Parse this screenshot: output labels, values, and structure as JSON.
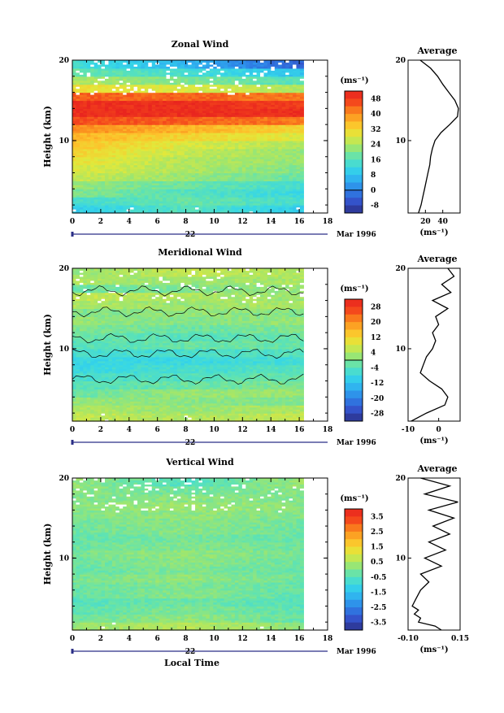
{
  "chart_data": [
    {
      "type": "heatmap",
      "title": "Zonal Wind",
      "ylabel": "Height (km)",
      "xlabel": "",
      "x_ticks": [
        "0",
        "2",
        "4",
        "6",
        "8",
        "10",
        "12",
        "14",
        "16",
        "18"
      ],
      "y_ticks": [
        "10",
        "20"
      ],
      "xlim": [
        0,
        18
      ],
      "ylim": [
        1,
        20
      ],
      "date_label": "22",
      "month_label": "Mar 1996",
      "colorbar": {
        "unit": "(ms⁻¹)",
        "ticks": [
          "48",
          "40",
          "32",
          "24",
          "16",
          "8",
          "0",
          "-8"
        ],
        "range": [
          -12,
          52
        ],
        "contour_at": 0
      },
      "bands": [
        {
          "h": [
            1,
            2
          ],
          "v": [
            10,
            16,
            10
          ]
        },
        {
          "h": [
            2,
            3
          ],
          "v": [
            14,
            18,
            14
          ]
        },
        {
          "h": [
            3,
            4
          ],
          "v": [
            20,
            16,
            12
          ]
        },
        {
          "h": [
            4,
            5
          ],
          "v": [
            22,
            18,
            14
          ]
        },
        {
          "h": [
            5,
            6
          ],
          "v": [
            26,
            22,
            18
          ]
        },
        {
          "h": [
            6,
            7
          ],
          "v": [
            28,
            24,
            20
          ]
        },
        {
          "h": [
            7,
            8
          ],
          "v": [
            30,
            24,
            22
          ]
        },
        {
          "h": [
            8,
            9
          ],
          "v": [
            32,
            26,
            22
          ]
        },
        {
          "h": [
            9,
            10
          ],
          "v": [
            34,
            28,
            24
          ]
        },
        {
          "h": [
            10,
            11
          ],
          "v": [
            36,
            32,
            28
          ]
        },
        {
          "h": [
            11,
            12
          ],
          "v": [
            40,
            36,
            32
          ]
        },
        {
          "h": [
            12,
            13
          ],
          "v": [
            46,
            44,
            42
          ]
        },
        {
          "h": [
            13,
            14
          ],
          "v": [
            50,
            50,
            50
          ]
        },
        {
          "h": [
            14,
            15
          ],
          "v": [
            50,
            50,
            48
          ]
        },
        {
          "h": [
            15,
            16
          ],
          "v": [
            44,
            44,
            42
          ]
        },
        {
          "h": [
            16,
            17
          ],
          "v": [
            30,
            28,
            24
          ]
        },
        {
          "h": [
            17,
            18
          ],
          "v": [
            24,
            20,
            16
          ]
        },
        {
          "h": [
            18,
            19
          ],
          "v": [
            18,
            14,
            8
          ]
        },
        {
          "h": [
            19,
            20
          ],
          "v": [
            14,
            6,
            -4
          ]
        }
      ],
      "data_end_hour": 16.3,
      "profile": {
        "title": "Average",
        "x_ticks": [
          "20",
          "40"
        ],
        "xlim": [
          0,
          60
        ],
        "y_ticks": [
          "10",
          "20"
        ],
        "xlabel": "(ms⁻¹)",
        "heights": [
          1,
          2,
          3,
          4,
          5,
          6,
          7,
          8,
          9,
          10,
          11,
          12,
          13,
          14,
          15,
          16,
          17,
          18,
          19,
          20
        ],
        "values": [
          12,
          15,
          17,
          19,
          21,
          23,
          25,
          26,
          28,
          31,
          38,
          48,
          57,
          58,
          54,
          47,
          40,
          34,
          26,
          14
        ]
      }
    },
    {
      "type": "heatmap",
      "title": "Meridional Wind",
      "ylabel": "Height (km)",
      "xlabel": "",
      "x_ticks": [
        "0",
        "2",
        "4",
        "6",
        "8",
        "10",
        "12",
        "14",
        "16",
        "18"
      ],
      "y_ticks": [
        "10",
        "20"
      ],
      "xlim": [
        0,
        18
      ],
      "ylim": [
        1,
        20
      ],
      "date_label": "22",
      "month_label": "Mar 1996",
      "colorbar": {
        "unit": "(ms⁻¹)",
        "ticks": [
          "28",
          "20",
          "12",
          "4",
          "-4",
          "-12",
          "-20",
          "-28"
        ],
        "range": [
          -32,
          32
        ],
        "contour_at": 0
      },
      "bands": [
        {
          "h": [
            1,
            2
          ],
          "v": [
            6,
            4,
            6
          ]
        },
        {
          "h": [
            2,
            3
          ],
          "v": [
            4,
            2,
            4
          ]
        },
        {
          "h": [
            3,
            4
          ],
          "v": [
            2,
            1,
            0
          ]
        },
        {
          "h": [
            4,
            5
          ],
          "v": [
            -2,
            2,
            2
          ]
        },
        {
          "h": [
            5,
            6
          ],
          "v": [
            -4,
            -2,
            0
          ]
        },
        {
          "h": [
            6,
            7
          ],
          "v": [
            -6,
            -4,
            -2
          ]
        },
        {
          "h": [
            7,
            8
          ],
          "v": [
            -8,
            -6,
            -4
          ]
        },
        {
          "h": [
            8,
            9
          ],
          "v": [
            -8,
            -8,
            -6
          ]
        },
        {
          "h": [
            9,
            10
          ],
          "v": [
            -6,
            -6,
            -4
          ]
        },
        {
          "h": [
            10,
            11
          ],
          "v": [
            -4,
            -2,
            -2
          ]
        },
        {
          "h": [
            11,
            12
          ],
          "v": [
            -2,
            -4,
            -2
          ]
        },
        {
          "h": [
            12,
            13
          ],
          "v": [
            0,
            -2,
            0
          ]
        },
        {
          "h": [
            13,
            14
          ],
          "v": [
            2,
            0,
            2
          ]
        },
        {
          "h": [
            14,
            15
          ],
          "v": [
            0,
            2,
            0
          ]
        },
        {
          "h": [
            15,
            16
          ],
          "v": [
            4,
            2,
            4
          ]
        },
        {
          "h": [
            16,
            17
          ],
          "v": [
            6,
            4,
            2
          ]
        },
        {
          "h": [
            17,
            18
          ],
          "v": [
            -2,
            0,
            2
          ]
        },
        {
          "h": [
            18,
            19
          ],
          "v": [
            4,
            2,
            4
          ]
        },
        {
          "h": [
            19,
            20
          ],
          "v": [
            2,
            6,
            4
          ]
        }
      ],
      "data_end_hour": 16.3,
      "profile": {
        "title": "Average",
        "x_ticks": [
          "-10",
          "0"
        ],
        "xlim": [
          -10,
          7
        ],
        "y_ticks": [
          "10",
          "20"
        ],
        "xlabel": "(ms⁻¹)",
        "heights": [
          1,
          2,
          3,
          4,
          5,
          6,
          7,
          8,
          9,
          10,
          11,
          12,
          13,
          14,
          15,
          16,
          17,
          18,
          19,
          20
        ],
        "values": [
          -9,
          -4,
          2,
          3,
          1,
          -3,
          -6,
          -5,
          -4,
          -2,
          -1,
          -2,
          0,
          -1,
          3,
          -2,
          4,
          1,
          5,
          3
        ]
      }
    },
    {
      "type": "heatmap",
      "title": "Vertical Wind",
      "ylabel": "Height (km)",
      "xlabel": "Local Time",
      "x_ticks": [
        "0",
        "2",
        "4",
        "6",
        "8",
        "10",
        "12",
        "14",
        "16",
        "18"
      ],
      "y_ticks": [
        "10",
        "20"
      ],
      "xlim": [
        0,
        18
      ],
      "ylim": [
        1,
        20
      ],
      "date_label": "22",
      "month_label": "Mar 1996",
      "colorbar": {
        "unit": "(ms⁻¹)",
        "ticks": [
          "3.5",
          "2.5",
          "1.5",
          "0.5",
          "-0.5",
          "-1.5",
          "-2.5",
          "-3.5"
        ],
        "range": [
          -4,
          4
        ],
        "contour_at": null
      },
      "bands": [
        {
          "h": [
            1,
            2
          ],
          "v": [
            0.3,
            0.6,
            0.1
          ]
        },
        {
          "h": [
            2,
            3
          ],
          "v": [
            -0.2,
            0.2,
            -0.3
          ]
        },
        {
          "h": [
            3,
            4
          ],
          "v": [
            -0.4,
            0.0,
            -0.4
          ]
        },
        {
          "h": [
            4,
            5
          ],
          "v": [
            -0.5,
            -0.2,
            -0.5
          ]
        },
        {
          "h": [
            5,
            6
          ],
          "v": [
            -0.3,
            0.1,
            -0.4
          ]
        },
        {
          "h": [
            6,
            7
          ],
          "v": [
            -0.2,
            0.0,
            -0.3
          ]
        },
        {
          "h": [
            7,
            8
          ],
          "v": [
            -0.1,
            0.2,
            -0.2
          ]
        },
        {
          "h": [
            8,
            9
          ],
          "v": [
            -0.3,
            0.0,
            -0.3
          ]
        },
        {
          "h": [
            9,
            10
          ],
          "v": [
            -0.2,
            0.1,
            -0.2
          ]
        },
        {
          "h": [
            10,
            11
          ],
          "v": [
            -0.1,
            0.2,
            -0.1
          ]
        },
        {
          "h": [
            11,
            12
          ],
          "v": [
            -0.2,
            0.0,
            -0.2
          ]
        },
        {
          "h": [
            12,
            13
          ],
          "v": [
            -0.3,
            -0.1,
            -0.3
          ]
        },
        {
          "h": [
            13,
            14
          ],
          "v": [
            -0.2,
            0.1,
            -0.2
          ]
        },
        {
          "h": [
            14,
            15
          ],
          "v": [
            -0.1,
            0.1,
            -0.1
          ]
        },
        {
          "h": [
            15,
            16
          ],
          "v": [
            0.0,
            0.2,
            0.0
          ]
        },
        {
          "h": [
            16,
            17
          ],
          "v": [
            0.1,
            0.3,
            0.1
          ]
        },
        {
          "h": [
            17,
            18
          ],
          "v": [
            0.0,
            0.1,
            0.0
          ]
        },
        {
          "h": [
            18,
            19
          ],
          "v": [
            0.1,
            -0.2,
            0.1
          ]
        },
        {
          "h": [
            19,
            20
          ],
          "v": [
            0.2,
            -0.6,
            0.3
          ]
        }
      ],
      "data_end_hour": 16.3,
      "profile": {
        "title": "Average",
        "x_ticks": [
          "-0.10",
          "0.15"
        ],
        "xlim": [
          -0.1,
          0.15
        ],
        "y_ticks": [
          "10",
          "20"
        ],
        "xlabel": "(ms⁻¹)",
        "heights": [
          1,
          1.5,
          2,
          2.5,
          3,
          3.5,
          4,
          5,
          6,
          7,
          8,
          9,
          10,
          11,
          12,
          13,
          14,
          15,
          16,
          17,
          18,
          19,
          20
        ],
        "values": [
          0.06,
          0.03,
          -0.05,
          -0.04,
          -0.07,
          -0.05,
          -0.08,
          -0.06,
          -0.04,
          0.0,
          -0.04,
          0.06,
          -0.02,
          0.08,
          0.0,
          0.1,
          0.02,
          0.12,
          0.0,
          0.14,
          -0.02,
          0.1,
          -0.04
        ]
      }
    }
  ]
}
